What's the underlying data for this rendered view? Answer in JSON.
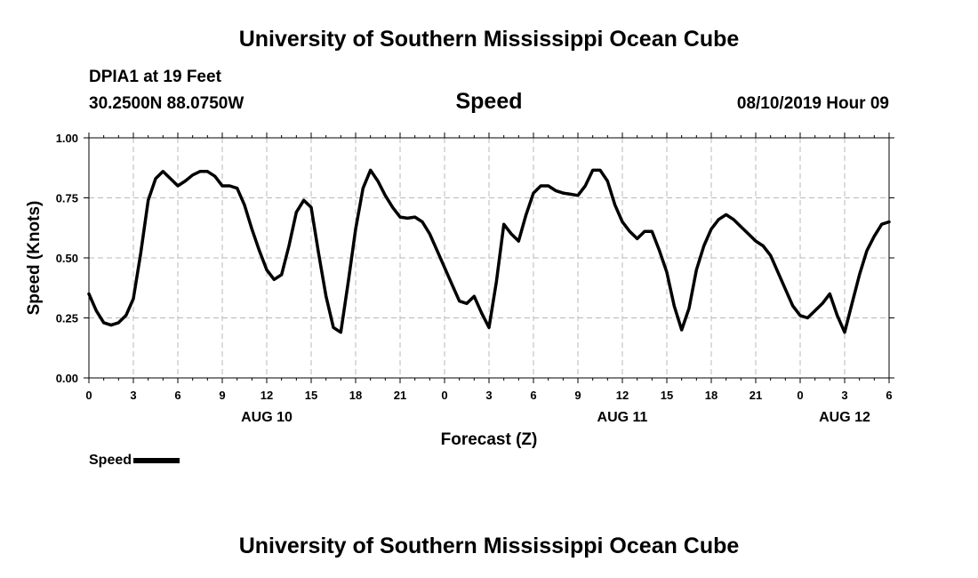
{
  "header": {
    "title_top": "University of Southern Mississippi Ocean Cube",
    "title_bottom": "University of Southern Mississippi Ocean Cube",
    "station": "DPIA1 at 19 Feet",
    "coords": "30.2500N 88.0750W",
    "metric": "Speed",
    "date": "08/10/2019 Hour 09"
  },
  "legend": {
    "label": "Speed",
    "color": "#000000"
  },
  "colors": {
    "line": "#000000",
    "grid": "#b8b8b8",
    "axis": "#000000"
  },
  "chart_data": {
    "type": "line",
    "title": "Speed",
    "xlabel": "Forecast (Z)",
    "ylabel": "Speed (Knots)",
    "xlim": [
      0,
      54
    ],
    "ylim": [
      0,
      1
    ],
    "yticks": [
      0,
      0.25,
      0.5,
      0.75,
      1
    ],
    "ytick_labels": [
      "0.00",
      "0.25",
      "0.50",
      "0.75",
      "1.00"
    ],
    "xticks": [
      0,
      3,
      6,
      9,
      12,
      15,
      18,
      21,
      24,
      27,
      30,
      33,
      36,
      39,
      42,
      45,
      48,
      51,
      54
    ],
    "xtick_labels": [
      "0",
      "3",
      "6",
      "9",
      "12",
      "15",
      "18",
      "21",
      "0",
      "3",
      "6",
      "9",
      "12",
      "15",
      "18",
      "21",
      "0",
      "3",
      "6"
    ],
    "date_labels": [
      {
        "x": 12,
        "label": "AUG 10"
      },
      {
        "x": 36,
        "label": "AUG 11"
      },
      {
        "x": 51,
        "label": "AUG 12"
      }
    ],
    "grid": true,
    "series": [
      {
        "name": "Speed",
        "x": [
          0,
          0.5,
          1,
          1.5,
          2,
          2.5,
          3,
          3.5,
          4,
          4.5,
          5,
          5.5,
          6,
          6.5,
          7,
          7.5,
          8,
          8.5,
          9,
          9.5,
          10,
          10.5,
          11,
          11.5,
          12,
          12.5,
          13,
          13.5,
          14,
          14.5,
          15,
          15.5,
          16,
          16.5,
          17,
          17.5,
          18,
          18.5,
          19,
          19.5,
          20,
          20.5,
          21,
          21.5,
          22,
          22.5,
          23,
          23.5,
          24,
          24.5,
          25,
          25.5,
          26,
          26.5,
          27,
          27.5,
          28,
          28.5,
          29,
          29.5,
          30,
          30.5,
          31,
          31.5,
          32,
          32.5,
          33,
          33.5,
          34,
          34.5,
          35,
          35.5,
          36,
          36.5,
          37,
          37.5,
          38,
          38.5,
          39,
          39.5,
          40,
          40.5,
          41,
          41.5,
          42,
          42.5,
          43,
          43.5,
          44,
          44.5,
          45,
          45.5,
          46,
          46.5,
          47,
          47.5,
          48,
          48.5,
          49,
          49.5,
          50,
          50.5,
          51,
          51.5,
          52,
          52.5,
          53,
          53.5,
          54
        ],
        "values": [
          0.35,
          0.28,
          0.23,
          0.22,
          0.23,
          0.26,
          0.33,
          0.52,
          0.74,
          0.83,
          0.86,
          0.83,
          0.8,
          0.82,
          0.845,
          0.86,
          0.86,
          0.84,
          0.8,
          0.8,
          0.79,
          0.72,
          0.62,
          0.53,
          0.45,
          0.41,
          0.43,
          0.55,
          0.69,
          0.74,
          0.71,
          0.52,
          0.34,
          0.21,
          0.19,
          0.4,
          0.62,
          0.79,
          0.865,
          0.82,
          0.76,
          0.71,
          0.67,
          0.665,
          0.67,
          0.65,
          0.6,
          0.53,
          0.46,
          0.39,
          0.32,
          0.31,
          0.34,
          0.27,
          0.21,
          0.4,
          0.64,
          0.6,
          0.57,
          0.68,
          0.77,
          0.8,
          0.8,
          0.78,
          0.77,
          0.765,
          0.76,
          0.8,
          0.865,
          0.865,
          0.82,
          0.72,
          0.65,
          0.61,
          0.58,
          0.61,
          0.61,
          0.53,
          0.44,
          0.3,
          0.2,
          0.29,
          0.45,
          0.55,
          0.62,
          0.66,
          0.68,
          0.66,
          0.63,
          0.6,
          0.57,
          0.55,
          0.51,
          0.44,
          0.37,
          0.3,
          0.26,
          0.25,
          0.28,
          0.31,
          0.35,
          0.26,
          0.19,
          0.31,
          0.43,
          0.53,
          0.59,
          0.64,
          0.65
        ]
      }
    ]
  }
}
